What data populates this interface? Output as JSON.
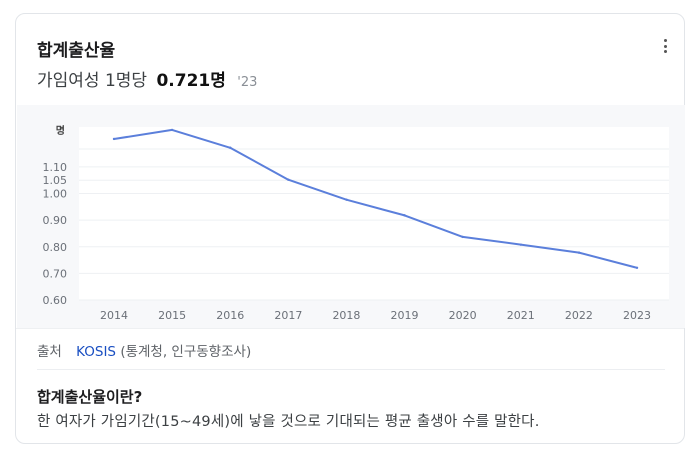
{
  "card": {
    "title": "합계출산율",
    "subtitle_label": "가임여성 1명당",
    "subtitle_value": "0.721명",
    "subtitle_year": "'23",
    "menu_icon": "more-vert-icon"
  },
  "chart_data": {
    "type": "line",
    "ylabel": "명",
    "categories": [
      "2014",
      "2015",
      "2016",
      "2017",
      "2018",
      "2019",
      "2020",
      "2021",
      "2022",
      "2023"
    ],
    "series": [
      {
        "values": [
          1.205,
          1.239,
          1.172,
          1.052,
          0.977,
          0.918,
          0.837,
          0.808,
          0.778,
          0.721
        ]
      }
    ],
    "yticks": [
      "0.60",
      "0.70",
      "0.80",
      "0.90",
      "1.00",
      "1.05",
      "1.10"
    ],
    "ylim": [
      0.6,
      1.25
    ],
    "line_color": "#5b7fdb",
    "grid": true
  },
  "source": {
    "label": "출처",
    "link": "KOSIS",
    "detail": "(통계청, 인구동향조사)"
  },
  "definition": {
    "title": "합계출산율이란?",
    "text": "한 여자가 가임기간(15~49세)에 낳을 것으로 기대되는 평균 출생아 수를 말한다."
  }
}
